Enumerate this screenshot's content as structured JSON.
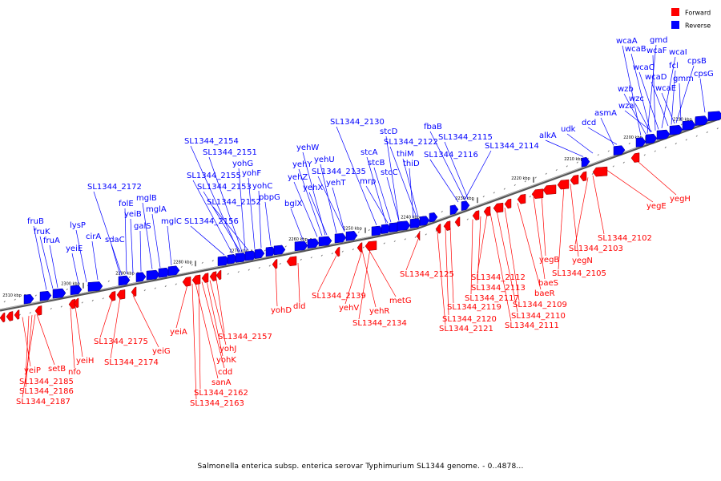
{
  "legend": {
    "forward_label": "Forward",
    "reverse_label": "Reverse",
    "forward_color": "#ff0000",
    "reverse_color": "#0000ff"
  },
  "backbone_color": "#888888",
  "caption": "Salmonella enterica subsp. enterica serovar Typhimurium SL1344 genome. - 0..4878...",
  "kbp_ticks": [
    {
      "value": "2190 kbp"
    },
    {
      "value": "2200 kbp"
    },
    {
      "value": "2210 kbp"
    },
    {
      "value": "2220 kbp"
    },
    {
      "value": "2230 kbp"
    },
    {
      "value": "2240 kbp"
    },
    {
      "value": "2250 kbp"
    },
    {
      "value": "2260 kbp"
    },
    {
      "value": "2270 kbp"
    },
    {
      "value": "2280 kbp"
    },
    {
      "value": "2290 kbp"
    },
    {
      "value": "2300 kbp"
    },
    {
      "value": "2310 kbp"
    }
  ],
  "reverse_genes": [
    "wcaA",
    "gmd",
    "wcaB",
    "wcaF",
    "wcaI",
    "cpsB",
    "wcaC",
    "fcl",
    "wcaD",
    "gmm",
    "cpsG",
    "wcaE",
    "wzb",
    "wzc",
    "wza",
    "asmA",
    "dcd",
    "udk",
    "alkA",
    "fbaB",
    "SL1344_2115",
    "SL1344_2116",
    "SL1344_2114",
    "SL1344_2130",
    "stcD",
    "SL1344_2122",
    "thiM",
    "stcA",
    "thiD",
    "stcB",
    "stcC",
    "mrp",
    "yehW",
    "yehY",
    "yehU",
    "yehZ",
    "SL1344_2135",
    "yehX",
    "yehT",
    "bglX",
    "SL1344_2154",
    "SL1344_2151",
    "yohG",
    "SL1344_2155",
    "yohF",
    "SL1344_2153",
    "yohC",
    "SL1344_2152",
    "pbpG",
    "SL1344_2156",
    "SL1344_2172",
    "mglB",
    "folE",
    "mglA",
    "yeiB",
    "galS",
    "mglC",
    "sdaC",
    "fruB",
    "lysP",
    "fruK",
    "cirA",
    "fruA",
    "yeiE"
  ],
  "forward_genes": [
    "yegH",
    "yegE",
    "SL1344_2102",
    "SL1344_2103",
    "yegN",
    "yegB",
    "SL1344_2105",
    "baeS",
    "SL1344_2112",
    "baeR",
    "SL1344_2113",
    "SL1344_2117",
    "SL1344_2109",
    "SL1344_2119",
    "SL1344_2110",
    "SL1344_2120",
    "SL1344_2111",
    "SL1344_2121",
    "SL1344_2125",
    "metG",
    "SL1344_2139",
    "yehV",
    "yehR",
    "SL1344_2134",
    "yohD",
    "dld",
    "SL1344_2157",
    "yeiA",
    "yohJ",
    "yohK",
    "cdd",
    "sanA",
    "SL1344_2162",
    "SL1344_2163",
    "SL1344_2175",
    "yeiG",
    "SL1344_2174",
    "yeiH",
    "nfo",
    "setB",
    "yeiP",
    "SL1344_2185",
    "SL1344_2186",
    "SL1344_2187"
  ]
}
